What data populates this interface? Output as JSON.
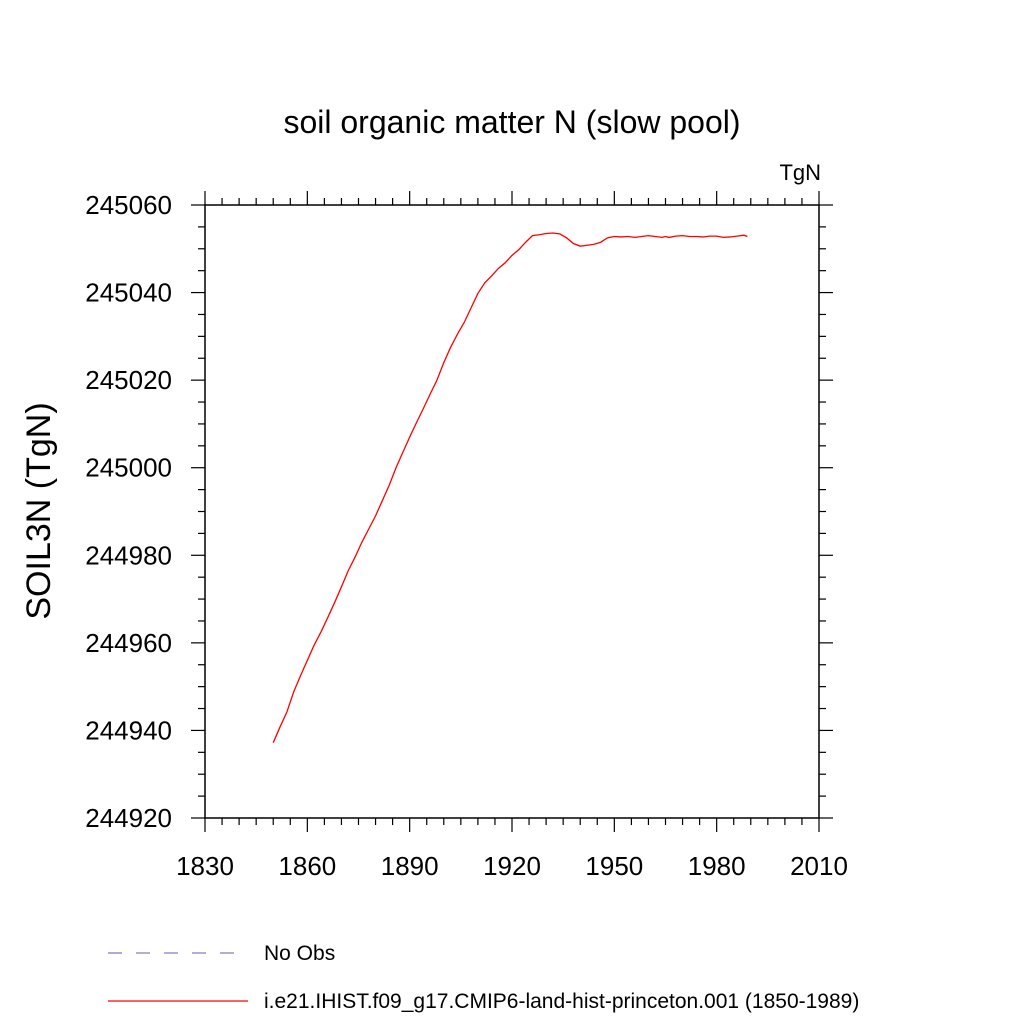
{
  "chart_data": {
    "type": "line",
    "title": "soil organic matter N (slow pool)",
    "units": "TgN",
    "xlabel": "",
    "ylabel": "SOIL3N  (TgN)",
    "xlim": [
      1830,
      2010
    ],
    "ylim": [
      244920,
      245060
    ],
    "xticks": [
      1830,
      1860,
      1890,
      1920,
      1950,
      1980,
      2010
    ],
    "yticks": [
      244920,
      244940,
      244960,
      244980,
      245000,
      245020,
      245040,
      245060
    ],
    "grid": false,
    "legend_position": "bottom",
    "series": [
      {
        "name": "i.e21.IHIST.f09_g17.CMIP6-land-hist-princeton.001 (1850-1989)",
        "color": "#ff0000",
        "style": "solid",
        "x": [
          1850,
          1852,
          1854,
          1856,
          1858,
          1860,
          1862,
          1864,
          1866,
          1868,
          1870,
          1872,
          1874,
          1876,
          1878,
          1880,
          1882,
          1884,
          1886,
          1888,
          1890,
          1892,
          1894,
          1896,
          1898,
          1900,
          1902,
          1904,
          1906,
          1908,
          1910,
          1912,
          1914,
          1916,
          1918,
          1920,
          1922,
          1924,
          1926,
          1928,
          1930,
          1932,
          1934,
          1936,
          1938,
          1940,
          1942,
          1944,
          1946,
          1948,
          1950,
          1952,
          1954,
          1956,
          1958,
          1960,
          1962,
          1964,
          1965,
          1966,
          1968,
          1970,
          1972,
          1974,
          1976,
          1978,
          1980,
          1982,
          1984,
          1986,
          1988,
          1989
        ],
        "y": [
          244937.2,
          244940.8,
          244944.2,
          244948.8,
          244952.5,
          244956.0,
          244959.5,
          244962.5,
          244965.8,
          244969.2,
          244972.8,
          244976.5,
          244979.6,
          244983.0,
          244986.0,
          244989.0,
          244992.5,
          244996.0,
          245000.0,
          245003.5,
          245007.0,
          245010.3,
          245013.5,
          245016.8,
          245020.0,
          245024.0,
          245027.5,
          245030.5,
          245033.2,
          245036.5,
          245039.8,
          245042.2,
          245043.8,
          245045.5,
          245046.8,
          245048.5,
          245049.8,
          245051.5,
          245053.0,
          245053.2,
          245053.5,
          245053.6,
          245053.4,
          245052.5,
          245051.2,
          245050.6,
          245050.8,
          245051.0,
          245051.5,
          245052.5,
          245052.8,
          245052.7,
          245052.8,
          245052.6,
          245052.8,
          245053.0,
          245052.8,
          245052.6,
          245052.8,
          245052.6,
          245052.9,
          245053.0,
          245052.8,
          245052.8,
          245052.7,
          245052.9,
          245052.9,
          245052.6,
          245052.7,
          245052.9,
          245053.1,
          245052.8
        ]
      },
      {
        "name": "No Obs",
        "color": "#7f7fbf",
        "style": "dashed",
        "x": [],
        "y": []
      }
    ]
  }
}
